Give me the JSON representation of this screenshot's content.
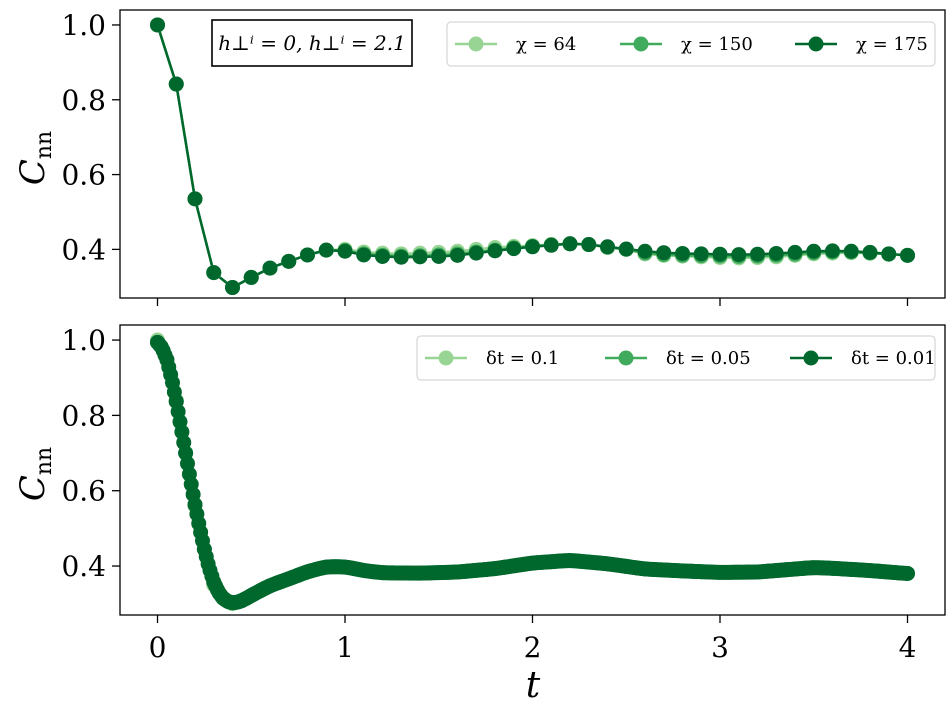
{
  "chart_data": [
    {
      "type": "line",
      "xlim": [
        -0.2,
        4.2
      ],
      "ylim": [
        0.27,
        1.04
      ],
      "yticks": [
        0.4,
        0.6,
        0.8,
        1.0
      ],
      "ytick_labels": [
        "0.4",
        "0.6",
        "0.8",
        "1.0"
      ],
      "xticks": [
        0,
        1,
        2,
        3,
        4
      ],
      "xtick_labels": [],
      "ylabel_main": "C",
      "ylabel_sub": "nn",
      "xlabel": "",
      "annotation": "h⊥ⁱ = 0, h⊥ⁱ = 2.1",
      "legend_position": "top-right",
      "series": [
        {
          "name": "χ = 64",
          "color": "#98d594",
          "x": [
            0,
            0.1,
            0.2,
            0.3,
            0.4,
            0.5,
            0.6,
            0.7,
            0.8,
            0.9,
            1.0,
            1.1,
            1.2,
            1.3,
            1.4,
            1.5,
            1.6,
            1.7,
            1.8,
            1.9,
            2.0,
            2.1,
            2.2,
            2.3,
            2.4,
            2.5,
            2.6,
            2.7,
            2.8,
            2.9,
            3.0,
            3.1,
            3.2,
            3.3,
            3.4,
            3.5,
            3.6,
            3.7,
            3.8,
            3.9,
            4.0
          ],
          "y": [
            1.0,
            0.842,
            0.535,
            0.338,
            0.298,
            0.325,
            0.35,
            0.368,
            0.385,
            0.398,
            0.4,
            0.393,
            0.39,
            0.388,
            0.39,
            0.392,
            0.395,
            0.4,
            0.405,
            0.408,
            0.41,
            0.413,
            0.415,
            0.413,
            0.405,
            0.4,
            0.388,
            0.384,
            0.382,
            0.38,
            0.378,
            0.377,
            0.378,
            0.38,
            0.384,
            0.388,
            0.39,
            0.391,
            0.39,
            0.387,
            0.384
          ]
        },
        {
          "name": "χ = 150",
          "color": "#41ab5d",
          "x": [
            0,
            0.1,
            0.2,
            0.3,
            0.4,
            0.5,
            0.6,
            0.7,
            0.8,
            0.9,
            1.0,
            1.1,
            1.2,
            1.3,
            1.4,
            1.5,
            1.6,
            1.7,
            1.8,
            1.9,
            2.0,
            2.1,
            2.2,
            2.3,
            2.4,
            2.5,
            2.6,
            2.7,
            2.8,
            2.9,
            3.0,
            3.1,
            3.2,
            3.3,
            3.4,
            3.5,
            3.6,
            3.7,
            3.8,
            3.9,
            4.0
          ],
          "y": [
            1.0,
            0.842,
            0.535,
            0.338,
            0.298,
            0.325,
            0.35,
            0.368,
            0.385,
            0.398,
            0.397,
            0.388,
            0.384,
            0.382,
            0.383,
            0.385,
            0.388,
            0.393,
            0.398,
            0.404,
            0.408,
            0.412,
            0.415,
            0.413,
            0.406,
            0.4,
            0.39,
            0.386,
            0.384,
            0.383,
            0.382,
            0.381,
            0.382,
            0.384,
            0.387,
            0.391,
            0.393,
            0.393,
            0.39,
            0.387,
            0.384
          ]
        },
        {
          "name": "χ = 175",
          "color": "#00682d",
          "x": [
            0,
            0.1,
            0.2,
            0.3,
            0.4,
            0.5,
            0.6,
            0.7,
            0.8,
            0.9,
            1.0,
            1.1,
            1.2,
            1.3,
            1.4,
            1.5,
            1.6,
            1.7,
            1.8,
            1.9,
            2.0,
            2.1,
            2.2,
            2.3,
            2.4,
            2.5,
            2.6,
            2.7,
            2.8,
            2.9,
            3.0,
            3.1,
            3.2,
            3.3,
            3.4,
            3.5,
            3.6,
            3.7,
            3.8,
            3.9,
            4.0
          ],
          "y": [
            1.0,
            0.842,
            0.535,
            0.338,
            0.298,
            0.325,
            0.35,
            0.368,
            0.385,
            0.398,
            0.395,
            0.385,
            0.381,
            0.379,
            0.38,
            0.381,
            0.384,
            0.39,
            0.396,
            0.402,
            0.407,
            0.411,
            0.415,
            0.413,
            0.407,
            0.401,
            0.395,
            0.391,
            0.389,
            0.388,
            0.387,
            0.386,
            0.387,
            0.389,
            0.392,
            0.395,
            0.396,
            0.395,
            0.392,
            0.388,
            0.384
          ]
        }
      ]
    },
    {
      "type": "line",
      "xlim": [
        -0.2,
        4.2
      ],
      "ylim": [
        0.27,
        1.04
      ],
      "yticks": [
        0.4,
        0.6,
        0.8,
        1.0
      ],
      "ytick_labels": [
        "0.4",
        "0.6",
        "0.8",
        "1.0"
      ],
      "xticks": [
        0,
        1,
        2,
        3,
        4
      ],
      "xtick_labels": [
        "0",
        "1",
        "2",
        "3",
        "4"
      ],
      "ylabel_main": "C",
      "ylabel_sub": "nn",
      "xlabel": "t",
      "legend_position": "top-right",
      "curve_knots": {
        "t": [
          0,
          0.05,
          0.1,
          0.15,
          0.2,
          0.25,
          0.3,
          0.35,
          0.4,
          0.45,
          0.5,
          0.6,
          0.7,
          0.8,
          0.9,
          1.0,
          1.1,
          1.2,
          1.4,
          1.6,
          1.8,
          2.0,
          2.2,
          2.4,
          2.6,
          2.8,
          3.0,
          3.2,
          3.4,
          3.5,
          3.6,
          3.8,
          4.0
        ],
        "C": [
          1.0,
          0.96,
          0.84,
          0.7,
          0.56,
          0.44,
          0.35,
          0.31,
          0.3,
          0.307,
          0.322,
          0.348,
          0.366,
          0.385,
          0.398,
          0.398,
          0.388,
          0.382,
          0.381,
          0.384,
          0.393,
          0.408,
          0.415,
          0.406,
          0.392,
          0.387,
          0.383,
          0.384,
          0.392,
          0.396,
          0.394,
          0.388,
          0.38
        ]
      },
      "series": [
        {
          "name": "δt = 0.1",
          "color": "#98d594",
          "dt": 0.1,
          "x": [
            0,
            0.1,
            0.2,
            0.3,
            0.4
          ],
          "y": [
            1.0,
            0.84,
            0.56,
            0.35,
            0.3
          ]
        },
        {
          "name": "δt = 0.05",
          "color": "#41ab5d",
          "dt": 0.05
        },
        {
          "name": "δt = 0.01",
          "color": "#00682d",
          "dt": 0.01
        }
      ]
    }
  ]
}
